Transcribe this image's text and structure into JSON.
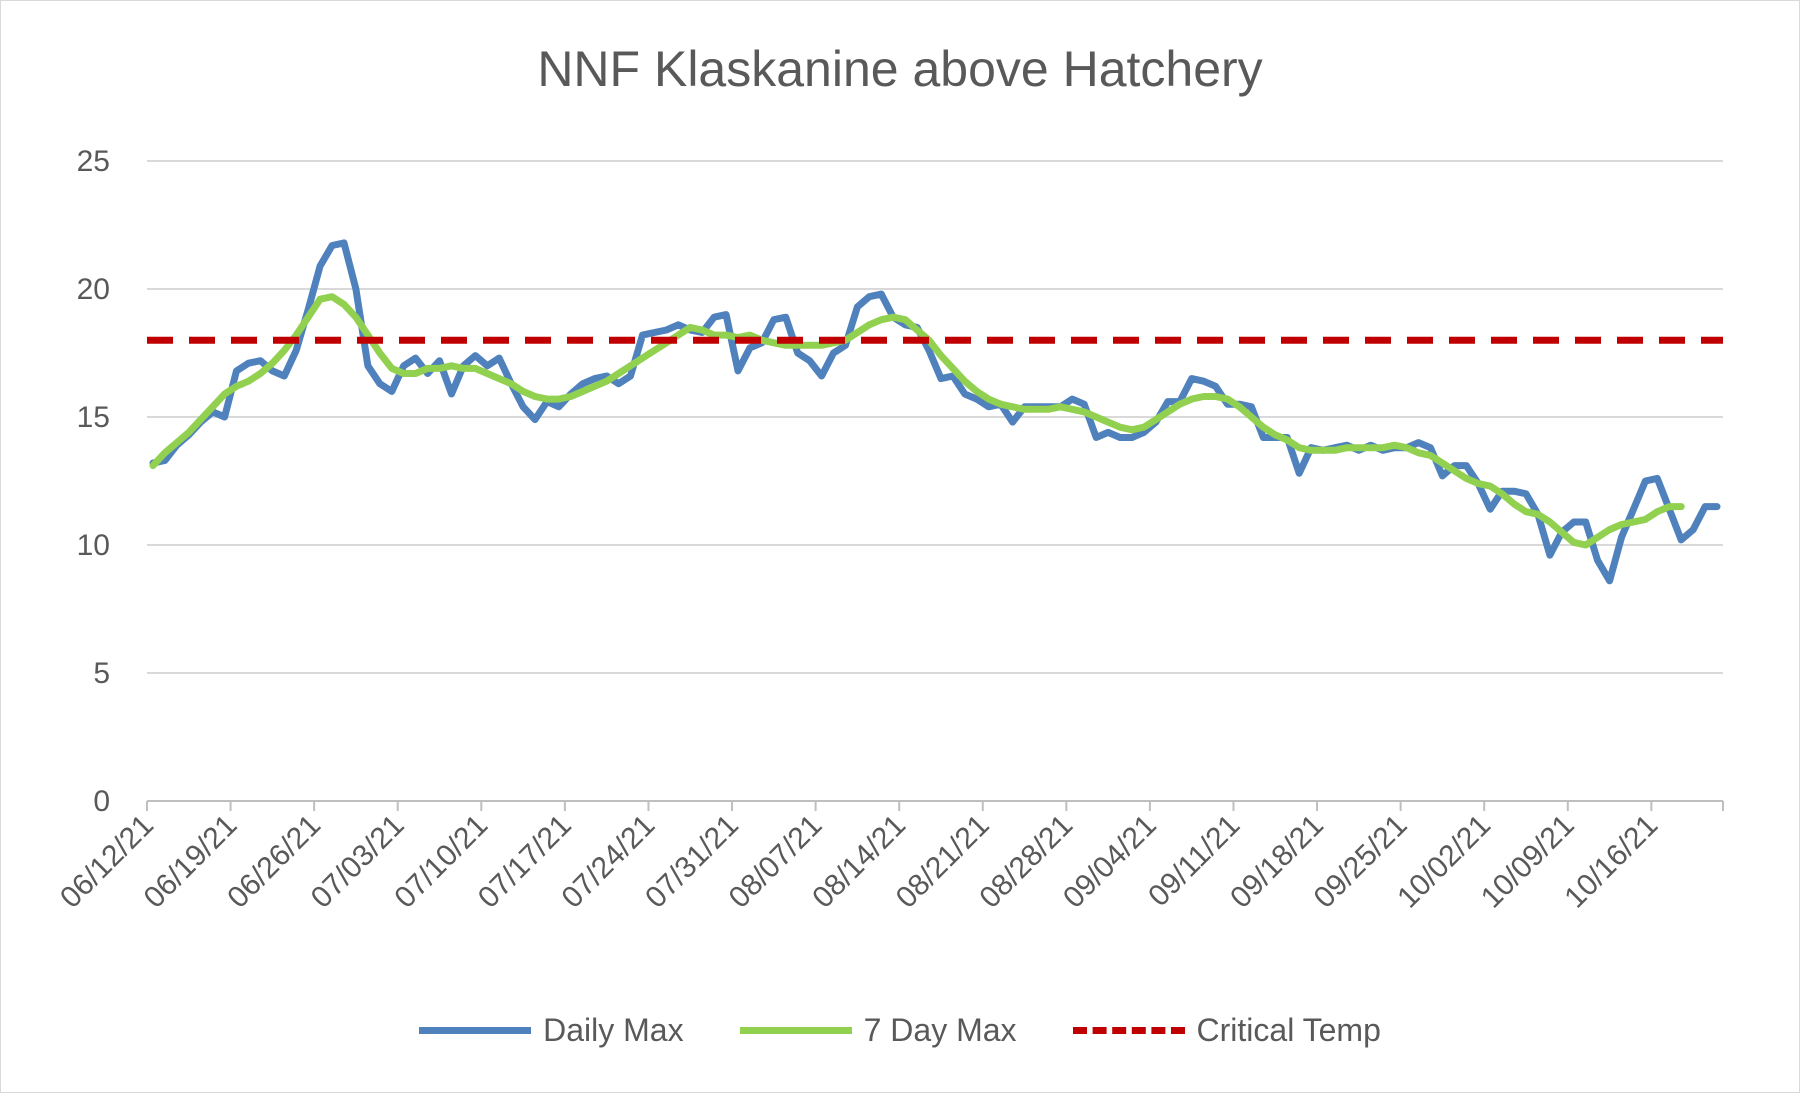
{
  "chart_data": {
    "type": "line",
    "title": "NNF Klaskanine above Hatchery",
    "xlabel": "",
    "ylabel": "",
    "ylim": [
      0,
      25
    ],
    "yticks": [
      "0",
      "5",
      "10",
      "15",
      "20",
      "25"
    ],
    "x_start": "06/12/21",
    "x_end": "10/21/21",
    "x_tick_labels": [
      "06/12/21",
      "06/19/21",
      "06/26/21",
      "07/03/21",
      "07/10/21",
      "07/17/21",
      "07/24/21",
      "07/31/21",
      "08/07/21",
      "08/14/21",
      "08/21/21",
      "08/28/21",
      "09/04/21",
      "09/11/21",
      "09/18/21",
      "09/25/21",
      "10/02/21",
      "10/09/21",
      "10/16/21"
    ],
    "grid": true,
    "legend_position": "bottom",
    "series": [
      {
        "name": "Daily Max",
        "color": "#4f81bd",
        "style": "solid",
        "values": [
          13.2,
          13.3,
          13.9,
          14.3,
          14.8,
          15.2,
          15.0,
          16.8,
          17.1,
          17.2,
          16.8,
          16.6,
          17.6,
          19.2,
          20.9,
          21.7,
          21.8,
          20.0,
          17.0,
          16.3,
          16.0,
          17.0,
          17.3,
          16.7,
          17.2,
          15.9,
          17.0,
          17.4,
          17.0,
          17.3,
          16.3,
          15.4,
          14.9,
          15.6,
          15.4,
          15.9,
          16.3,
          16.5,
          16.6,
          16.3,
          16.6,
          18.2,
          18.3,
          18.4,
          18.6,
          18.4,
          18.3,
          18.9,
          19.0,
          16.8,
          17.7,
          17.9,
          18.8,
          18.9,
          17.5,
          17.2,
          16.6,
          17.5,
          17.8,
          19.3,
          19.7,
          19.8,
          18.9,
          18.6,
          18.5,
          17.6,
          16.5,
          16.6,
          15.9,
          15.7,
          15.4,
          15.5,
          14.8,
          15.4,
          15.4,
          15.4,
          15.4,
          15.7,
          15.5,
          14.2,
          14.4,
          14.2,
          14.2,
          14.4,
          14.8,
          15.6,
          15.6,
          16.5,
          16.4,
          16.2,
          15.5,
          15.5,
          15.4,
          14.2,
          14.2,
          14.2,
          12.8,
          13.8,
          13.7,
          13.8,
          13.9,
          13.7,
          13.9,
          13.7,
          13.8,
          13.8,
          14.0,
          13.8,
          12.7,
          13.1,
          13.1,
          12.4,
          11.4,
          12.1,
          12.1,
          12.0,
          11.2,
          9.6,
          10.5,
          10.9,
          10.9,
          9.4,
          8.6,
          10.3,
          11.4,
          12.5,
          12.6,
          11.4,
          10.2,
          10.6,
          11.5,
          11.5
        ]
      },
      {
        "name": "7 Day Max",
        "color": "#92d050",
        "style": "solid",
        "values": [
          13.1,
          13.6,
          14.0,
          14.4,
          14.9,
          15.4,
          15.9,
          16.2,
          16.4,
          16.7,
          17.1,
          17.6,
          18.2,
          18.9,
          19.6,
          19.7,
          19.4,
          18.9,
          18.2,
          17.5,
          16.9,
          16.7,
          16.7,
          16.9,
          16.9,
          17.0,
          16.9,
          16.9,
          16.7,
          16.5,
          16.3,
          16.0,
          15.8,
          15.7,
          15.7,
          15.8,
          16.0,
          16.2,
          16.4,
          16.7,
          17.0,
          17.3,
          17.6,
          17.9,
          18.2,
          18.5,
          18.4,
          18.2,
          18.2,
          18.1,
          18.2,
          18.0,
          17.9,
          17.8,
          17.8,
          17.8,
          17.8,
          17.9,
          18.0,
          18.3,
          18.6,
          18.8,
          18.9,
          18.8,
          18.4,
          18.0,
          17.4,
          16.9,
          16.4,
          16.0,
          15.7,
          15.5,
          15.4,
          15.3,
          15.3,
          15.3,
          15.4,
          15.3,
          15.2,
          15.0,
          14.8,
          14.6,
          14.5,
          14.6,
          14.9,
          15.2,
          15.5,
          15.7,
          15.8,
          15.8,
          15.7,
          15.4,
          15.0,
          14.6,
          14.3,
          14.1,
          13.8,
          13.7,
          13.7,
          13.7,
          13.8,
          13.8,
          13.8,
          13.8,
          13.9,
          13.8,
          13.6,
          13.5,
          13.2,
          12.9,
          12.6,
          12.4,
          12.3,
          12.0,
          11.6,
          11.3,
          11.2,
          10.9,
          10.5,
          10.1,
          10.0,
          10.3,
          10.6,
          10.8,
          10.9,
          11.0,
          11.3,
          11.5,
          11.5
        ]
      },
      {
        "name": "Critical Temp",
        "color": "#c00000",
        "style": "dashed",
        "values": [
          18,
          18
        ]
      }
    ]
  }
}
